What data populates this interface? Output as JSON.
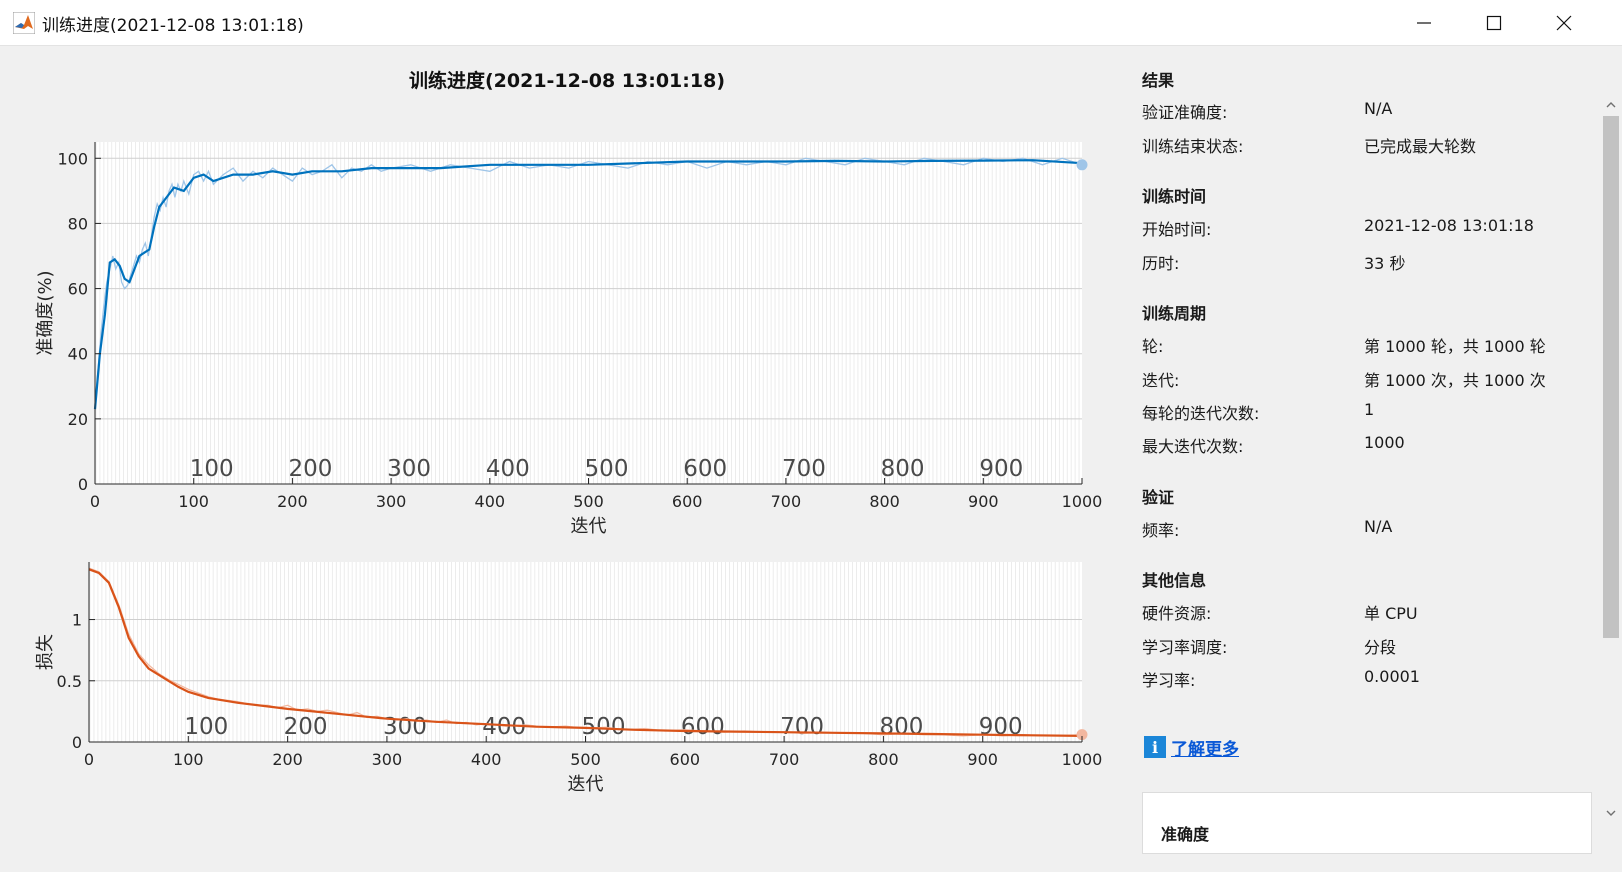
{
  "window": {
    "title": "训练进度(2021-12-08 13:01:18)",
    "icon": "matlab-logo-icon",
    "controls": [
      "minimize-icon",
      "maximize-icon",
      "close-icon"
    ]
  },
  "colors": {
    "accuracy": "#0072bd",
    "accuracy_raw": "#9fc5e8",
    "loss": "#d95319",
    "loss_raw": "#f2b79f",
    "link": "#0a58d6"
  },
  "chart_data": [
    {
      "type": "line",
      "title": "训练进度(2021-12-08 13:01:18)",
      "xlabel": "迭代",
      "ylabel": "准确度(%)",
      "xlim": [
        0,
        1000
      ],
      "ylim": [
        0,
        105
      ],
      "xticks": [
        0,
        100,
        200,
        300,
        400,
        500,
        600,
        700,
        800,
        900,
        1000
      ],
      "yticks": [
        0,
        20,
        40,
        60,
        80,
        100
      ],
      "epoch_labels": [
        100,
        200,
        300,
        400,
        500,
        600,
        700,
        800,
        900
      ],
      "grid": true,
      "series": [
        {
          "values_smoothed": [
            [
              0,
              23
            ],
            [
              5,
              40
            ],
            [
              10,
              52
            ],
            [
              15,
              68
            ],
            [
              20,
              69
            ],
            [
              25,
              67
            ],
            [
              30,
              63
            ],
            [
              35,
              62
            ],
            [
              40,
              66
            ],
            [
              45,
              70
            ],
            [
              50,
              71
            ],
            [
              55,
              72
            ],
            [
              60,
              79
            ],
            [
              65,
              85
            ],
            [
              70,
              87
            ],
            [
              80,
              91
            ],
            [
              90,
              90
            ],
            [
              100,
              94
            ],
            [
              110,
              95
            ],
            [
              120,
              93
            ],
            [
              140,
              95
            ],
            [
              160,
              95
            ],
            [
              180,
              96
            ],
            [
              200,
              95
            ],
            [
              220,
              96
            ],
            [
              250,
              96
            ],
            [
              280,
              97
            ],
            [
              300,
              97
            ],
            [
              350,
              97
            ],
            [
              400,
              98
            ],
            [
              450,
              98
            ],
            [
              500,
              98
            ],
            [
              550,
              98.5
            ],
            [
              600,
              99
            ],
            [
              650,
              99
            ],
            [
              700,
              99
            ],
            [
              750,
              99.2
            ],
            [
              800,
              99
            ],
            [
              850,
              99.2
            ],
            [
              900,
              99.3
            ],
            [
              950,
              99.4
            ],
            [
              1000,
              98.5
            ]
          ],
          "values_raw": [
            [
              0,
              23
            ],
            [
              3,
              35
            ],
            [
              6,
              46
            ],
            [
              9,
              55
            ],
            [
              12,
              62
            ],
            [
              15,
              66
            ],
            [
              18,
              70
            ],
            [
              21,
              66
            ],
            [
              24,
              68
            ],
            [
              27,
              62
            ],
            [
              30,
              60
            ],
            [
              33,
              61
            ],
            [
              36,
              64
            ],
            [
              39,
              67
            ],
            [
              42,
              70
            ],
            [
              45,
              68
            ],
            [
              48,
              72
            ],
            [
              51,
              74
            ],
            [
              54,
              70
            ],
            [
              57,
              76
            ],
            [
              60,
              82
            ],
            [
              63,
              86
            ],
            [
              66,
              84
            ],
            [
              69,
              88
            ],
            [
              72,
              85
            ],
            [
              75,
              90
            ],
            [
              78,
              92
            ],
            [
              81,
              88
            ],
            [
              84,
              92
            ],
            [
              87,
              90
            ],
            [
              90,
              93
            ],
            [
              95,
              89
            ],
            [
              100,
              95
            ],
            [
              105,
              96
            ],
            [
              110,
              93
            ],
            [
              115,
              96
            ],
            [
              120,
              92
            ],
            [
              130,
              95
            ],
            [
              140,
              97
            ],
            [
              150,
              93
            ],
            [
              160,
              96
            ],
            [
              170,
              94
            ],
            [
              180,
              97
            ],
            [
              190,
              95
            ],
            [
              200,
              93
            ],
            [
              210,
              97
            ],
            [
              220,
              95
            ],
            [
              230,
              96
            ],
            [
              240,
              98
            ],
            [
              250,
              94
            ],
            [
              260,
              97
            ],
            [
              270,
              96
            ],
            [
              280,
              98
            ],
            [
              290,
              96
            ],
            [
              300,
              97
            ],
            [
              320,
              98
            ],
            [
              340,
              96
            ],
            [
              360,
              98
            ],
            [
              380,
              97
            ],
            [
              400,
              96
            ],
            [
              420,
              99
            ],
            [
              440,
              97
            ],
            [
              460,
              98
            ],
            [
              480,
              97
            ],
            [
              500,
              99
            ],
            [
              520,
              98
            ],
            [
              540,
              97
            ],
            [
              560,
              99
            ],
            [
              580,
              98
            ],
            [
              600,
              99
            ],
            [
              620,
              97
            ],
            [
              640,
              99
            ],
            [
              660,
              98
            ],
            [
              680,
              99
            ],
            [
              700,
              98
            ],
            [
              720,
              100
            ],
            [
              740,
              99
            ],
            [
              760,
              98
            ],
            [
              780,
              100
            ],
            [
              800,
              99
            ],
            [
              820,
              98
            ],
            [
              840,
              100
            ],
            [
              860,
              99
            ],
            [
              880,
              98
            ],
            [
              900,
              100
            ],
            [
              920,
              99
            ],
            [
              940,
              100
            ],
            [
              960,
              98
            ],
            [
              980,
              100
            ],
            [
              1000,
              98
            ]
          ]
        }
      ]
    },
    {
      "type": "line",
      "xlabel": "迭代",
      "ylabel": "损失",
      "xlim": [
        0,
        1000
      ],
      "ylim": [
        0,
        1.47
      ],
      "xticks": [
        0,
        100,
        200,
        300,
        400,
        500,
        600,
        700,
        800,
        900,
        1000
      ],
      "yticks": [
        0,
        0.5,
        1
      ],
      "epoch_labels": [
        100,
        200,
        300,
        400,
        500,
        600,
        700,
        800,
        900
      ],
      "grid": true,
      "series": [
        {
          "values_smoothed": [
            [
              0,
              1.41
            ],
            [
              10,
              1.38
            ],
            [
              20,
              1.3
            ],
            [
              30,
              1.1
            ],
            [
              40,
              0.85
            ],
            [
              50,
              0.7
            ],
            [
              60,
              0.6
            ],
            [
              70,
              0.55
            ],
            [
              80,
              0.5
            ],
            [
              90,
              0.45
            ],
            [
              100,
              0.41
            ],
            [
              120,
              0.36
            ],
            [
              150,
              0.32
            ],
            [
              200,
              0.27
            ],
            [
              250,
              0.23
            ],
            [
              300,
              0.19
            ],
            [
              350,
              0.165
            ],
            [
              400,
              0.145
            ],
            [
              450,
              0.125
            ],
            [
              500,
              0.115
            ],
            [
              550,
              0.1
            ],
            [
              600,
              0.09
            ],
            [
              650,
              0.085
            ],
            [
              700,
              0.08
            ],
            [
              750,
              0.075
            ],
            [
              800,
              0.07
            ],
            [
              850,
              0.065
            ],
            [
              900,
              0.06
            ],
            [
              950,
              0.055
            ],
            [
              1000,
              0.05
            ]
          ],
          "values_raw": [
            [
              0,
              1.42
            ],
            [
              10,
              1.39
            ],
            [
              20,
              1.31
            ],
            [
              30,
              1.12
            ],
            [
              40,
              0.88
            ],
            [
              50,
              0.72
            ],
            [
              60,
              0.63
            ],
            [
              70,
              0.56
            ],
            [
              80,
              0.51
            ],
            [
              90,
              0.47
            ],
            [
              100,
              0.43
            ],
            [
              110,
              0.4
            ],
            [
              120,
              0.37
            ],
            [
              130,
              0.35
            ],
            [
              140,
              0.34
            ],
            [
              150,
              0.33
            ],
            [
              160,
              0.31
            ],
            [
              170,
              0.3
            ],
            [
              180,
              0.3
            ],
            [
              190,
              0.28
            ],
            [
              200,
              0.3
            ],
            [
              210,
              0.26
            ],
            [
              220,
              0.27
            ],
            [
              230,
              0.25
            ],
            [
              240,
              0.26
            ],
            [
              250,
              0.24
            ],
            [
              260,
              0.22
            ],
            [
              270,
              0.24
            ],
            [
              280,
              0.2
            ],
            [
              290,
              0.21
            ],
            [
              300,
              0.19
            ],
            [
              310,
              0.18
            ],
            [
              320,
              0.19
            ],
            [
              330,
              0.17
            ],
            [
              340,
              0.18
            ],
            [
              350,
              0.16
            ],
            [
              360,
              0.18
            ],
            [
              370,
              0.15
            ],
            [
              380,
              0.16
            ],
            [
              390,
              0.14
            ],
            [
              400,
              0.15
            ],
            [
              420,
              0.13
            ],
            [
              440,
              0.14
            ],
            [
              460,
              0.12
            ],
            [
              480,
              0.13
            ],
            [
              500,
              0.11
            ],
            [
              520,
              0.12
            ],
            [
              540,
              0.1
            ],
            [
              560,
              0.11
            ],
            [
              580,
              0.09
            ],
            [
              600,
              0.1
            ],
            [
              620,
              0.09
            ],
            [
              640,
              0.08
            ],
            [
              660,
              0.09
            ],
            [
              680,
              0.08
            ],
            [
              700,
              0.08
            ],
            [
              720,
              0.07
            ],
            [
              740,
              0.08
            ],
            [
              760,
              0.07
            ],
            [
              780,
              0.07
            ],
            [
              800,
              0.06
            ],
            [
              820,
              0.07
            ],
            [
              840,
              0.06
            ],
            [
              860,
              0.06
            ],
            [
              880,
              0.05
            ],
            [
              900,
              0.06
            ],
            [
              920,
              0.05
            ],
            [
              940,
              0.06
            ],
            [
              960,
              0.05
            ],
            [
              980,
              0.05
            ],
            [
              1000,
              0.06
            ]
          ]
        }
      ]
    }
  ],
  "info": {
    "results": {
      "title": "结果",
      "val_acc_label": "验证准确度:",
      "val_acc": "N/A",
      "end_label": "训练结束状态:",
      "end": "已完成最大轮数"
    },
    "time": {
      "title": "训练时间",
      "start_label": "开始时间:",
      "start": "2021-12-08 13:01:18",
      "elapsed_label": "历时:",
      "elapsed": "33 秒"
    },
    "cycle": {
      "title": "训练周期",
      "epoch_label": "轮:",
      "epoch": "第 1000 轮，共 1000 轮",
      "iter_label": "迭代:",
      "iter": "第 1000 次，共 1000 次",
      "ipe_label": "每轮的迭代次数:",
      "ipe": "1",
      "max_label": "最大迭代次数:",
      "max": "1000"
    },
    "validation": {
      "title": "验证",
      "freq_label": "频率:",
      "freq": "N/A"
    },
    "other": {
      "title": "其他信息",
      "hw_label": "硬件资源:",
      "hw": "单 CPU",
      "sched_label": "学习率调度:",
      "sched": "分段",
      "lr_label": "学习率:",
      "lr": "0.0001"
    },
    "learn_more": "了解更多",
    "legend_title": "准确度"
  }
}
